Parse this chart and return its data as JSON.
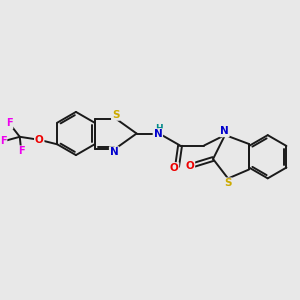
{
  "background_color": "#e8e8e8",
  "bond_color": "#1a1a1a",
  "atom_colors": {
    "S": "#ccaa00",
    "N": "#0000cc",
    "O": "#ee0000",
    "F": "#ee00ee",
    "H": "#008888",
    "C": "#1a1a1a"
  },
  "figsize": [
    3.0,
    3.0
  ],
  "dpi": 100,
  "lw": 1.4,
  "inner_off": 0.075,
  "fs": 7.5
}
